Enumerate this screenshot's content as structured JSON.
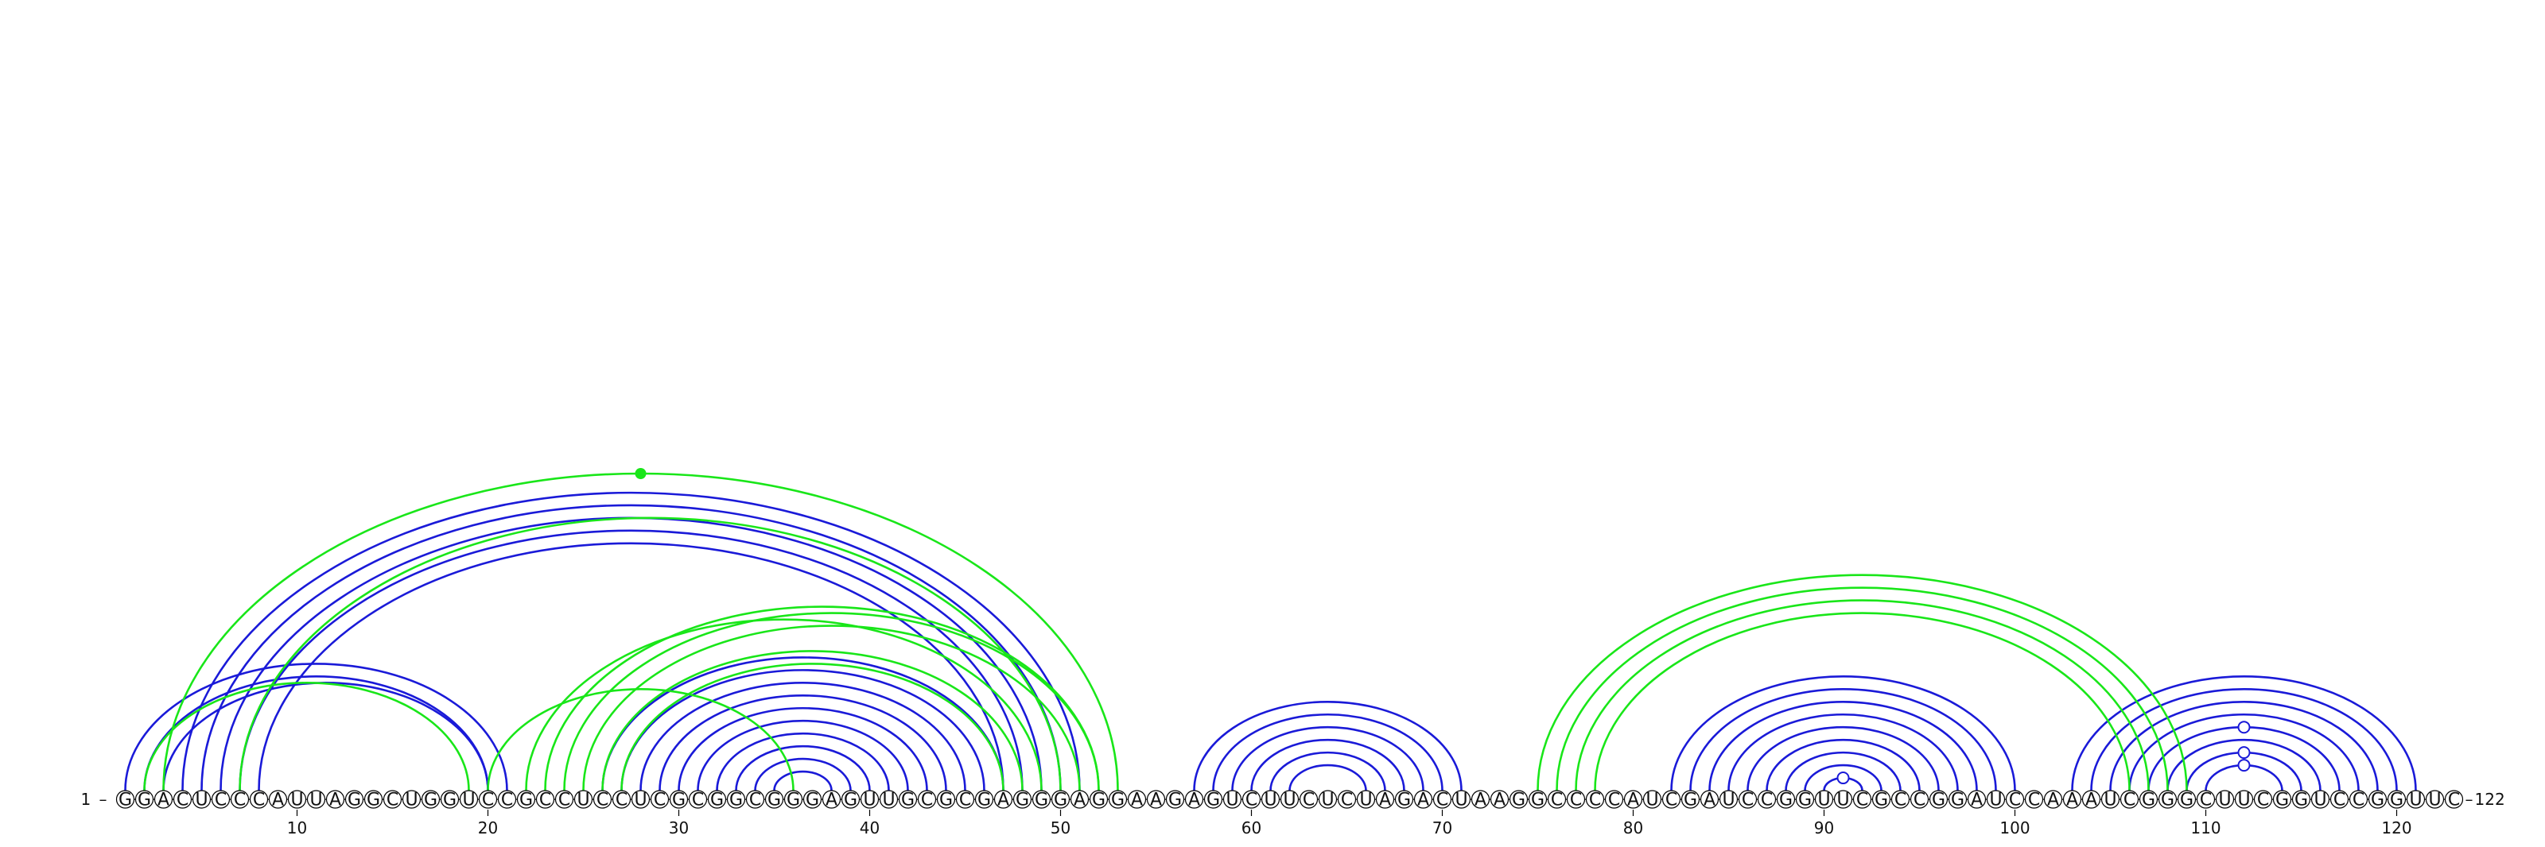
{
  "sequence": "GGACUCCCAUUAGGCUGGUCCGCCUCCUCGCGGCGGGAGUUGCGCGAGGGAGGAAGAGUCUUCUCUAGACUAAGGCCCCAUCGAUCCGGUUCGCCGGAUCCAAAUCGGGCUUCGGUCCGGUUC",
  "start_label": "1",
  "end_label": "122",
  "ticks": [
    "10",
    "20",
    "30",
    "40",
    "50",
    "60",
    "70",
    "80",
    "90",
    "100",
    "110",
    "120"
  ],
  "colors": {
    "blue": "#1a1ad8",
    "green": "#19e619",
    "backbone": "#000000"
  },
  "blue_pairs": [
    [
      1,
      21
    ],
    [
      2,
      20
    ],
    [
      3,
      20
    ],
    [
      4,
      51
    ],
    [
      5,
      50
    ],
    [
      6,
      49
    ],
    [
      7,
      48
    ],
    [
      8,
      47
    ],
    [
      26,
      47
    ],
    [
      27,
      46
    ],
    [
      28,
      45
    ],
    [
      29,
      44
    ],
    [
      30,
      43
    ],
    [
      31,
      42
    ],
    [
      32,
      41
    ],
    [
      33,
      40
    ],
    [
      34,
      39
    ],
    [
      35,
      38
    ],
    [
      57,
      71
    ],
    [
      58,
      70
    ],
    [
      59,
      69
    ],
    [
      60,
      68
    ],
    [
      61,
      67
    ],
    [
      62,
      66
    ],
    [
      82,
      100
    ],
    [
      83,
      99
    ],
    [
      84,
      98
    ],
    [
      85,
      97
    ],
    [
      86,
      96
    ],
    [
      87,
      95
    ],
    [
      88,
      94
    ],
    [
      89,
      93
    ],
    [
      90,
      92
    ],
    [
      103,
      121
    ],
    [
      104,
      120
    ],
    [
      105,
      119
    ],
    [
      106,
      118
    ],
    [
      107,
      117
    ],
    [
      108,
      116
    ],
    [
      109,
      115
    ],
    [
      110,
      114
    ]
  ],
  "green_pairs": [
    [
      3,
      53
    ],
    [
      7,
      50
    ],
    [
      20,
      36
    ],
    [
      22,
      49
    ],
    [
      23,
      52
    ],
    [
      24,
      52
    ],
    [
      25,
      51
    ],
    [
      26,
      48
    ],
    [
      27,
      47
    ],
    [
      19,
      2
    ],
    [
      75,
      109
    ],
    [
      76,
      108
    ],
    [
      77,
      107
    ],
    [
      78,
      106
    ]
  ],
  "markers": [
    {
      "type": "filled-dot",
      "color": "green",
      "arc": "green-3-53"
    },
    {
      "type": "open-circle",
      "color": "blue",
      "arc": "blue-90-92"
    },
    {
      "type": "open-circle",
      "color": "blue",
      "arc": "blue-110-114"
    },
    {
      "type": "open-circle",
      "color": "blue",
      "arc": "blue-109-115"
    },
    {
      "type": "open-circle",
      "color": "blue",
      "arc": "blue-107-117"
    }
  ]
}
